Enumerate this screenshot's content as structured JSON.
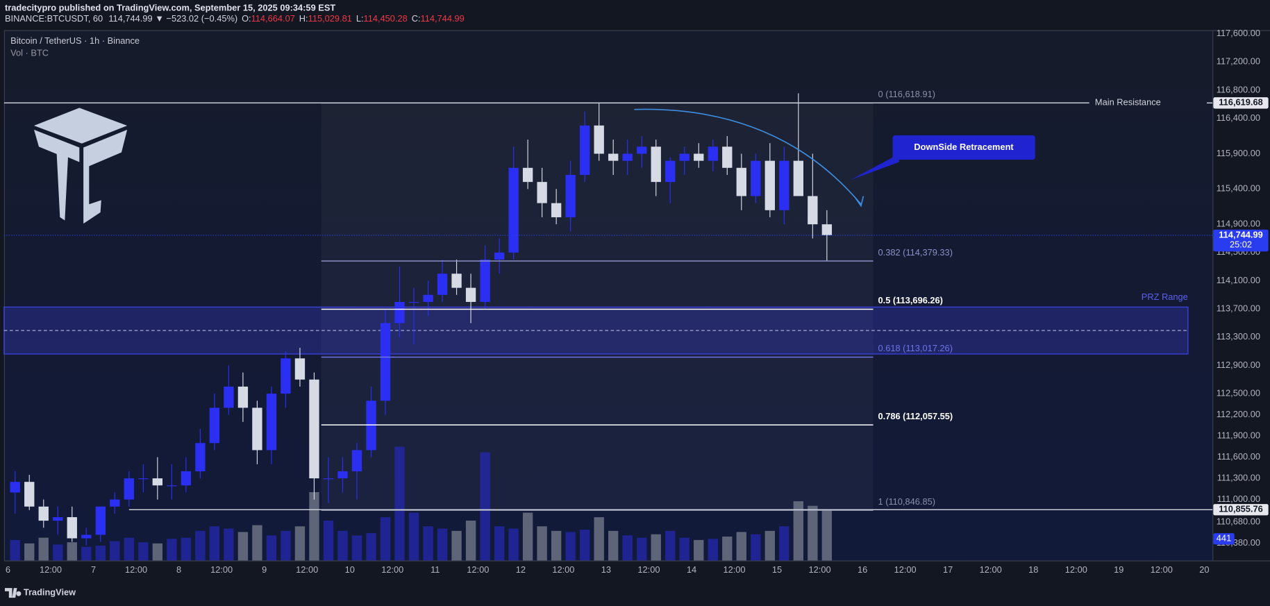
{
  "header": {
    "byline": "tradecitypro published on TradingView.com, September 15, 2025 09:34:59 EST",
    "symbol": "BINANCE:BTCUSDT, 60",
    "quote": "114,744.99 ▼ −523.02 (−0.45%)",
    "ohlc": [
      {
        "key": "O:",
        "value": "114,664.07"
      },
      {
        "key": "H:",
        "value": "115,029.81"
      },
      {
        "key": "L:",
        "value": "114,450.28"
      },
      {
        "key": "C:",
        "value": "114,744.99"
      }
    ]
  },
  "footer": {
    "brand": "TradingView"
  },
  "chart_data": {
    "type": "candlestick",
    "title": "Bitcoin / TetherUS · 1h · Binance",
    "subtitle": "Vol · BTC",
    "up_color": "#2b2ff2",
    "down_color": "#d6dae4",
    "volume_up_color": "#2528b0",
    "volume_down_color": "#7a7f8f",
    "xlim": [
      -1.1,
      338.3
    ],
    "xticks": [
      {
        "value": 0,
        "label": "6"
      },
      {
        "value": 12,
        "label": "12:00"
      },
      {
        "value": 24,
        "label": "7"
      },
      {
        "value": 36,
        "label": "12:00"
      },
      {
        "value": 48,
        "label": "8"
      },
      {
        "value": 60,
        "label": "12:00"
      },
      {
        "value": 72,
        "label": "9"
      },
      {
        "value": 84,
        "label": "12:00"
      },
      {
        "value": 96,
        "label": "10"
      },
      {
        "value": 108,
        "label": "12:00"
      },
      {
        "value": 120,
        "label": "11"
      },
      {
        "value": 132,
        "label": "12:00"
      },
      {
        "value": 144,
        "label": "12"
      },
      {
        "value": 156,
        "label": "12:00"
      },
      {
        "value": 168,
        "label": "13"
      },
      {
        "value": 180,
        "label": "12:00"
      },
      {
        "value": 192,
        "label": "14"
      },
      {
        "value": 204,
        "label": "12:00"
      },
      {
        "value": 216,
        "label": "15"
      },
      {
        "value": 228,
        "label": "12:00"
      },
      {
        "value": 240,
        "label": "16"
      },
      {
        "value": 252,
        "label": "12:00"
      },
      {
        "value": 264,
        "label": "17"
      },
      {
        "value": 276,
        "label": "12:00"
      },
      {
        "value": 288,
        "label": "18"
      },
      {
        "value": 300,
        "label": "12:00"
      },
      {
        "value": 312,
        "label": "19"
      },
      {
        "value": 324,
        "label": "12:00"
      },
      {
        "value": 336,
        "label": "20"
      }
    ],
    "ylim": [
      110136,
      117640
    ],
    "yticks": [
      {
        "value": 117600,
        "label": "117,600.00"
      },
      {
        "value": 117200,
        "label": "117,200.00"
      },
      {
        "value": 116800,
        "label": "116,800.00"
      },
      {
        "value": 116400,
        "label": "116,400.00"
      },
      {
        "value": 115900,
        "label": "115,900.00"
      },
      {
        "value": 115400,
        "label": "115,400.00"
      },
      {
        "value": 114900,
        "label": "114,900.00"
      },
      {
        "value": 114500,
        "label": "114,500.00"
      },
      {
        "value": 114100,
        "label": "114,100.00"
      },
      {
        "value": 113700,
        "label": "113,700.00"
      },
      {
        "value": 113300,
        "label": "113,300.00"
      },
      {
        "value": 112900,
        "label": "112,900.00"
      },
      {
        "value": 112500,
        "label": "112,500.00"
      },
      {
        "value": 112200,
        "label": "112,200.00"
      },
      {
        "value": 111900,
        "label": "111,900.00"
      },
      {
        "value": 111600,
        "label": "111,600.00"
      },
      {
        "value": 111300,
        "label": "111,300.00"
      },
      {
        "value": 111000,
        "label": "111,000.00"
      },
      {
        "value": 110680,
        "label": "110,680.00"
      },
      {
        "value": 110380,
        "label": "110,380.00"
      }
    ],
    "volume_lim": [
      0,
      4650
    ],
    "candles": {
      "x": [
        0,
        4,
        8,
        12,
        16,
        20,
        24,
        28,
        32,
        36,
        40,
        44,
        48,
        52,
        56,
        60,
        64,
        68,
        72,
        76,
        80,
        84,
        88,
        92,
        96,
        100,
        104,
        108,
        112,
        116,
        120,
        124,
        128,
        132,
        136,
        140,
        144,
        148,
        152,
        156,
        160,
        164,
        168,
        172,
        176,
        180,
        184,
        188,
        192,
        196,
        200,
        204,
        208,
        212,
        216,
        220,
        224,
        228
      ],
      "open": [
        111100,
        111250,
        110900,
        110700,
        110750,
        110450,
        110500,
        110900,
        111000,
        111300,
        111300,
        111200,
        111200,
        111400,
        111800,
        112300,
        112600,
        112300,
        111700,
        112500,
        113000,
        112700,
        111300,
        111300,
        111400,
        111700,
        112400,
        113500,
        113800,
        113800,
        113900,
        114200,
        114000,
        113800,
        114400,
        114500,
        115700,
        115500,
        115200,
        115000,
        115600,
        116300,
        115900,
        115800,
        115900,
        116000,
        115500,
        115800,
        115900,
        115800,
        116000,
        115700,
        115300,
        115800,
        115100,
        115800,
        115300,
        114900
      ],
      "high": [
        111400,
        111350,
        111000,
        110900,
        110900,
        110600,
        110700,
        111100,
        111400,
        111500,
        111600,
        111500,
        111600,
        112000,
        112500,
        112900,
        112800,
        112400,
        112600,
        113100,
        113150,
        112800,
        111600,
        111600,
        111800,
        112600,
        113700,
        114300,
        114000,
        114100,
        114400,
        114400,
        114200,
        114600,
        114700,
        116000,
        116100,
        115700,
        115400,
        115800,
        116500,
        116619,
        116100,
        116100,
        116150,
        116100,
        115850,
        116000,
        116050,
        116100,
        116150,
        115900,
        115900,
        116050,
        116000,
        116757,
        115900,
        115100
      ],
      "low": [
        110800,
        110850,
        110600,
        110500,
        110400,
        110350,
        110400,
        110800,
        110900,
        111100,
        111000,
        111000,
        111100,
        111300,
        111700,
        112200,
        112100,
        111500,
        111500,
        112300,
        112600,
        111000,
        110950,
        111100,
        111000,
        111600,
        112200,
        113300,
        113200,
        113600,
        113800,
        113900,
        113500,
        113700,
        114200,
        114400,
        115400,
        115000,
        114900,
        114800,
        115500,
        115800,
        115600,
        115600,
        115700,
        115300,
        115200,
        115600,
        115700,
        115650,
        115600,
        115100,
        115200,
        115000,
        114900,
        115700,
        114700,
        114379
      ],
      "close": [
        111250,
        110900,
        110700,
        110750,
        110450,
        110500,
        110900,
        111000,
        111300,
        111300,
        111200,
        111200,
        111400,
        111800,
        112300,
        112600,
        112300,
        111700,
        112500,
        113000,
        112700,
        111300,
        111300,
        111400,
        111700,
        112400,
        113500,
        113800,
        113800,
        113900,
        114200,
        114000,
        113800,
        114400,
        114500,
        115700,
        115500,
        115200,
        115000,
        115600,
        116300,
        115900,
        115800,
        115900,
        116000,
        115500,
        115800,
        115900,
        115800,
        116000,
        115700,
        115300,
        115800,
        115100,
        115800,
        115300,
        114900,
        114744.99
      ],
      "volume": [
        180,
        150,
        200,
        140,
        160,
        120,
        130,
        170,
        200,
        160,
        150,
        190,
        200,
        260,
        300,
        280,
        250,
        310,
        220,
        260,
        300,
        600,
        350,
        260,
        220,
        240,
        380,
        1000,
        420,
        300,
        280,
        260,
        350,
        950,
        300,
        280,
        420,
        300,
        260,
        250,
        270,
        380,
        260,
        220,
        200,
        230,
        260,
        200,
        180,
        190,
        210,
        250,
        230,
        260,
        300,
        520,
        480,
        441
      ]
    },
    "fib": {
      "x": [
        88,
        243
      ],
      "color": "#7b80ff",
      "levels": [
        {
          "label": "0 (116,618.91)",
          "value": 116618.91,
          "color": "#8a90a8"
        },
        {
          "label": "0.382 (114,379.33)",
          "value": 114379.33,
          "color": "#8a90c8"
        },
        {
          "label": "0.5 (113,696.26)",
          "value": 113696.26,
          "color": "#ffffff"
        },
        {
          "label": "0.618 (113,017.26)",
          "value": 113017.26,
          "color": "#6f74e8"
        },
        {
          "label": "0.786 (112,057.55)",
          "value": 112057.55,
          "color": "#ffffff"
        },
        {
          "label": "1 (110,846.85)",
          "value": 110846.85,
          "color": "#8a90a8"
        }
      ]
    },
    "prz": {
      "label": "PRZ Range",
      "x": [
        -1.1,
        331.4
      ],
      "top": 113727,
      "bottom": 113062,
      "mid": 113395,
      "color": "#3a3fd8"
    },
    "resistance": {
      "label": "Main Resistance",
      "value": 116619.68,
      "price_label": "116,619.68",
      "x": [
        -1.1,
        303.7
      ],
      "color": "#c8ccd6"
    },
    "support": {
      "value": 110855.76,
      "price_label": "110,855.76",
      "x": [
        34,
        338.3
      ],
      "color": "#c8ccd6"
    },
    "last": {
      "value": 114744.99,
      "label": "114,744.99",
      "countdown": "25:02",
      "color": "#2a3cf0"
    },
    "annotation": {
      "text": "DownSide Retracement"
    }
  }
}
